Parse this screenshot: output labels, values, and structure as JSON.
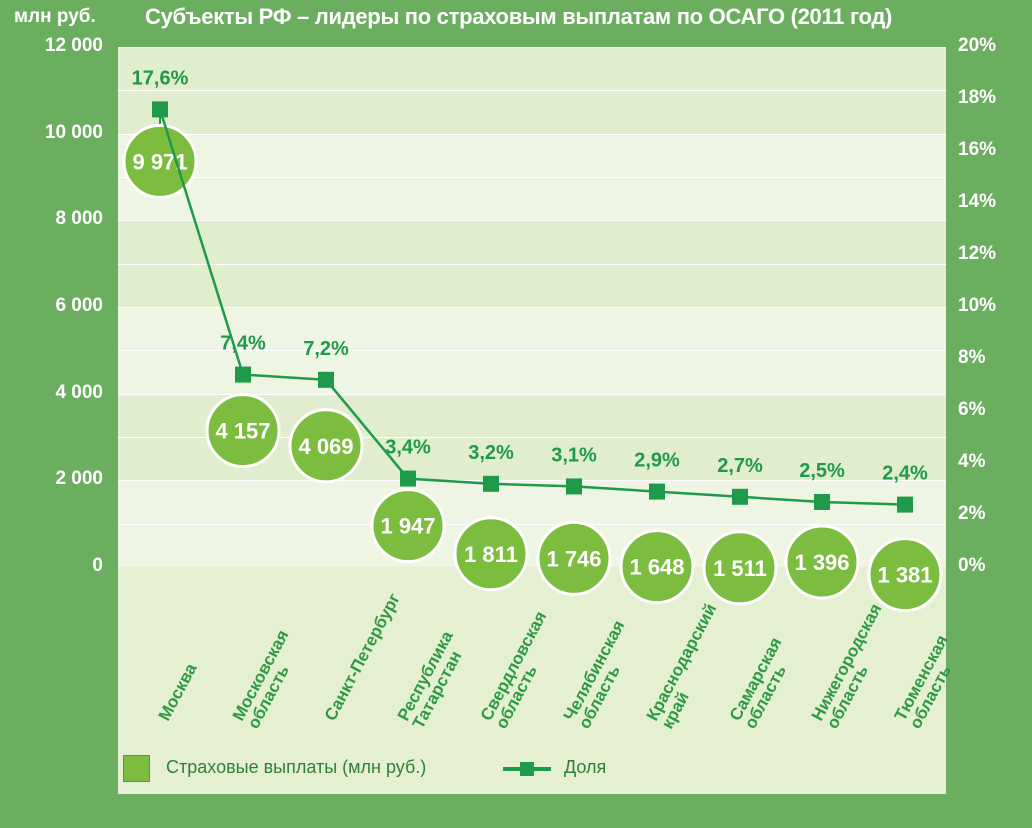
{
  "header": {
    "unit_label": "млн руб.",
    "title": "Субъекты РФ – лидеры по страховым выплатам по ОСАГО (2011 год)"
  },
  "axes": {
    "left_ticks": [
      "0",
      "2 000",
      "4 000",
      "6 000",
      "8 000",
      "10 000",
      "12 000"
    ],
    "right_ticks": [
      "0%",
      "2%",
      "4%",
      "6%",
      "8%",
      "10%",
      "12%",
      "14%",
      "16%",
      "18%",
      "20%"
    ]
  },
  "legend": {
    "bars_label": "Страховые выплаты (млн руб.)",
    "line_label": "Доля"
  },
  "colors": {
    "bubble_fill": "#7cbd40",
    "line": "#1e9a4a",
    "marker": "#1e9a4a",
    "percent_text": "#1e9a4a",
    "category_text": "#2f9a45"
  },
  "chart_data": {
    "type": "line",
    "title": "Субъекты РФ – лидеры по страховым выплатам по ОСАГО (2011 год)",
    "ylabel": "млн руб.",
    "ylim": [
      0,
      12000
    ],
    "y2lim": [
      0,
      20
    ],
    "categories": [
      [
        "Москва"
      ],
      [
        "Московская",
        "область"
      ],
      [
        "Санкт-Петербург"
      ],
      [
        "Республика",
        "Татарстан"
      ],
      [
        "Свердловская",
        "область"
      ],
      [
        "Челябинская",
        "область"
      ],
      [
        "Краснодарский",
        "край"
      ],
      [
        "Самарская",
        "область"
      ],
      [
        "Нижегородская",
        "область"
      ],
      [
        "Тюменская",
        "область"
      ]
    ],
    "payments": [
      9971,
      4157,
      4069,
      1947,
      1811,
      1746,
      1648,
      1511,
      1396,
      1381
    ],
    "payment_labels": [
      "9 971",
      "4 157",
      "4 069",
      "1 947",
      "1 811",
      "1 746",
      "1 648",
      "1 511",
      "1 396",
      "1 381"
    ],
    "share": [
      17.6,
      7.4,
      7.2,
      3.4,
      3.2,
      3.1,
      2.9,
      2.7,
      2.5,
      2.4
    ],
    "share_labels": [
      "17,6%",
      "7,4%",
      "7,2%",
      "3,4%",
      "3,2%",
      "3,1%",
      "2,9%",
      "2,7%",
      "2,5%",
      "2,4%"
    ],
    "series": [
      {
        "name": "Страховые выплаты (млн руб.)",
        "values": [
          9971,
          4157,
          4069,
          1947,
          1811,
          1746,
          1648,
          1511,
          1396,
          1381
        ]
      },
      {
        "name": "Доля",
        "values": [
          17.6,
          7.4,
          7.2,
          3.4,
          3.2,
          3.1,
          2.9,
          2.7,
          2.5,
          2.4
        ]
      }
    ],
    "grid": true,
    "legend_position": "bottom"
  }
}
